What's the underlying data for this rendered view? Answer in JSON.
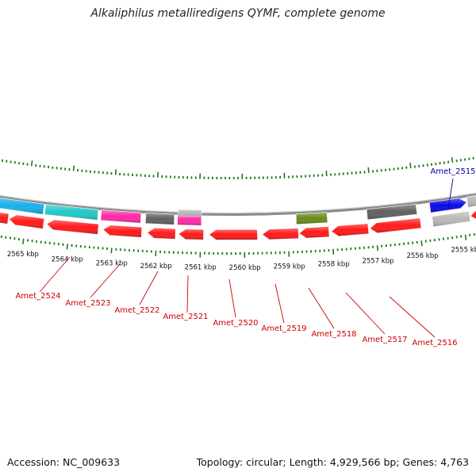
{
  "title": "Alkaliphilus metalliredigens QYMF, complete genome",
  "footer": {
    "accession": "Accession: NC_009633",
    "summary": "Topology: circular; Length: 4,929,566 bp; Genes: 4,763"
  },
  "colors": {
    "tick": "#1a7a1a",
    "backbone": "#8a8a8a",
    "label_red": "#cc0000",
    "label_blue": "#0000aa",
    "gene_red": "#ff1a1a",
    "gene_cyan": "#20c8c8",
    "gene_skyblue": "#1ab0e8",
    "gene_magenta": "#ff2aa8",
    "gene_gray": "#606060",
    "gene_lightgray": "#b8b8b8",
    "gene_olive": "#6a8a1a",
    "gene_blue": "#0a0ae8"
  },
  "kbp_labels": [
    "2565 kbp",
    "2564 kbp",
    "2563 kbp",
    "2562 kbp",
    "2561 kbp",
    "2560 kbp",
    "2559 kbp",
    "2558 kbp",
    "2557 kbp",
    "2556 kbp",
    "2555 kbp"
  ],
  "gene_labels": [
    {
      "text": "Amet_2524",
      "color": "red"
    },
    {
      "text": "Amet_2523",
      "color": "red"
    },
    {
      "text": "Amet_2522",
      "color": "red"
    },
    {
      "text": "Amet_2521",
      "color": "red"
    },
    {
      "text": "Amet_2520",
      "color": "red"
    },
    {
      "text": "Amet_2519",
      "color": "red"
    },
    {
      "text": "Amet_2518",
      "color": "red"
    },
    {
      "text": "Amet_2517",
      "color": "red"
    },
    {
      "text": "Amet_2516",
      "color": "red"
    },
    {
      "text": "Amet_2515",
      "color": "blue"
    }
  ]
}
